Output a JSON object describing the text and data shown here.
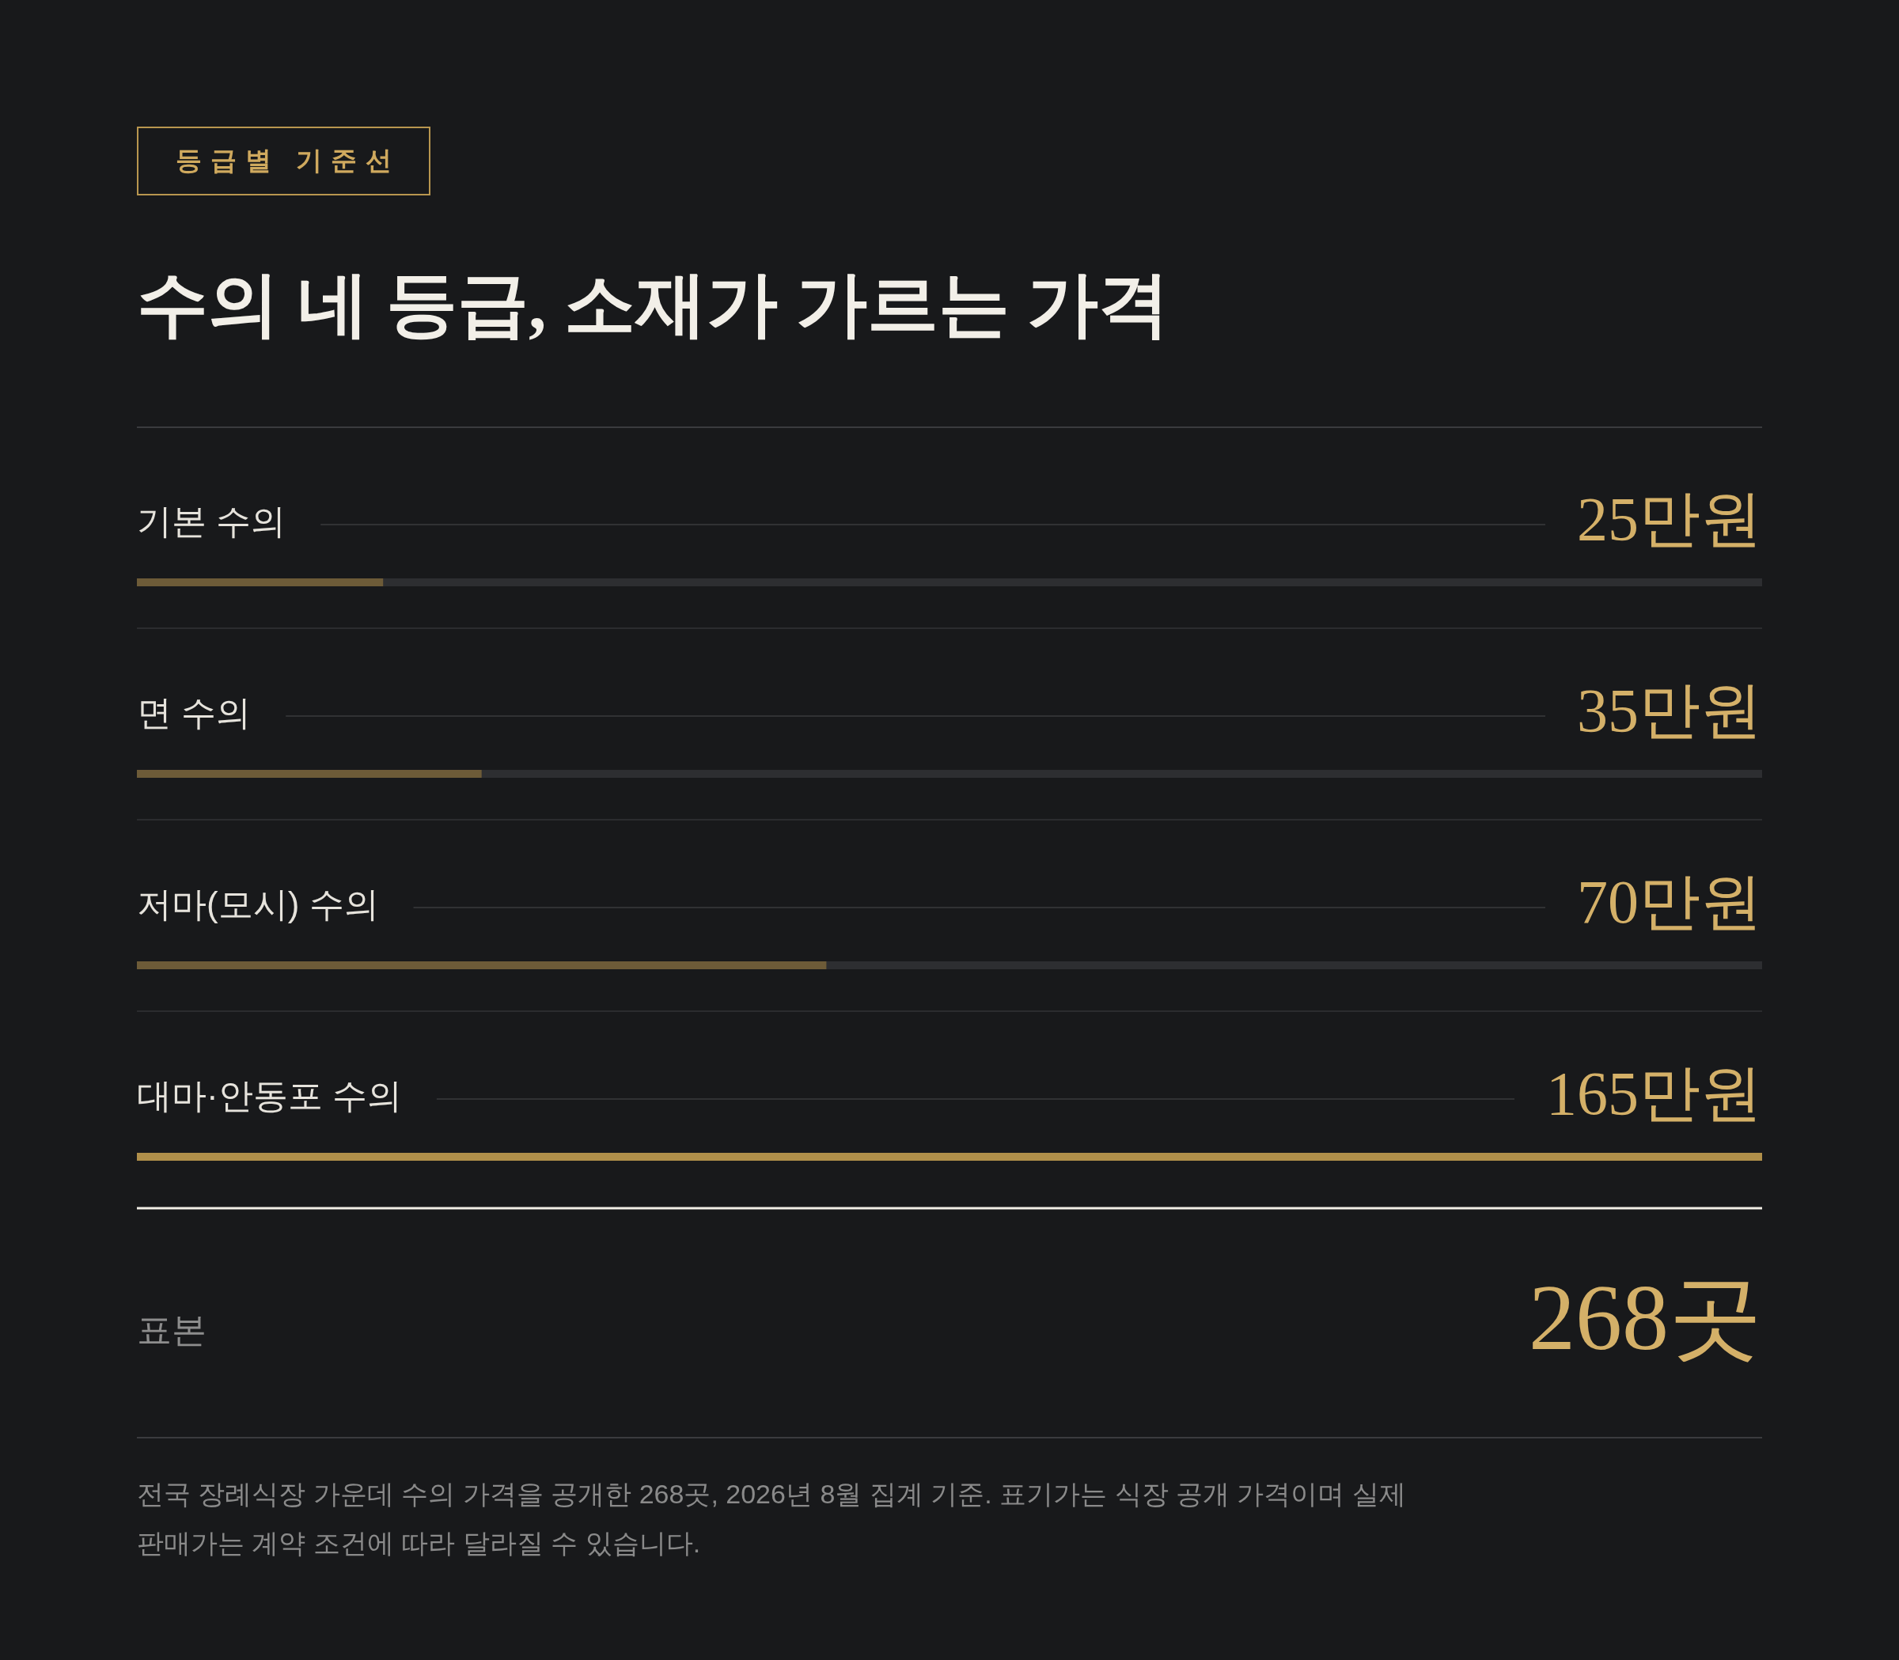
{
  "chart_data": {
    "type": "bar",
    "orientation": "horizontal",
    "title": "수의 네 등급, 소재가 가르는 가격",
    "categories": [
      "기본 수의",
      "면 수의",
      "저마(모시) 수의",
      "대마·안동포 수의"
    ],
    "values": [
      25,
      35,
      70,
      165
    ],
    "colors": [
      "#6d5b38",
      "#6d5b38",
      "#6d5b38",
      "#b08f4a"
    ],
    "value_labels": [
      "25만원",
      "35만원",
      "70만원",
      "165만원"
    ],
    "xlim": [
      0,
      165
    ],
    "tick_labels": "y",
    "annotations": [
      "등급별 기준선",
      "표본",
      "268곳",
      "전국 장례식장 가운데 수의 가격을 공개한 268곳, 2026년 8월 집계 기준. 표기가는 식장 공개 가격이며 실제 판매가는 계약 조건에 따라 달라질 수 있습니다."
    ]
  }
}
